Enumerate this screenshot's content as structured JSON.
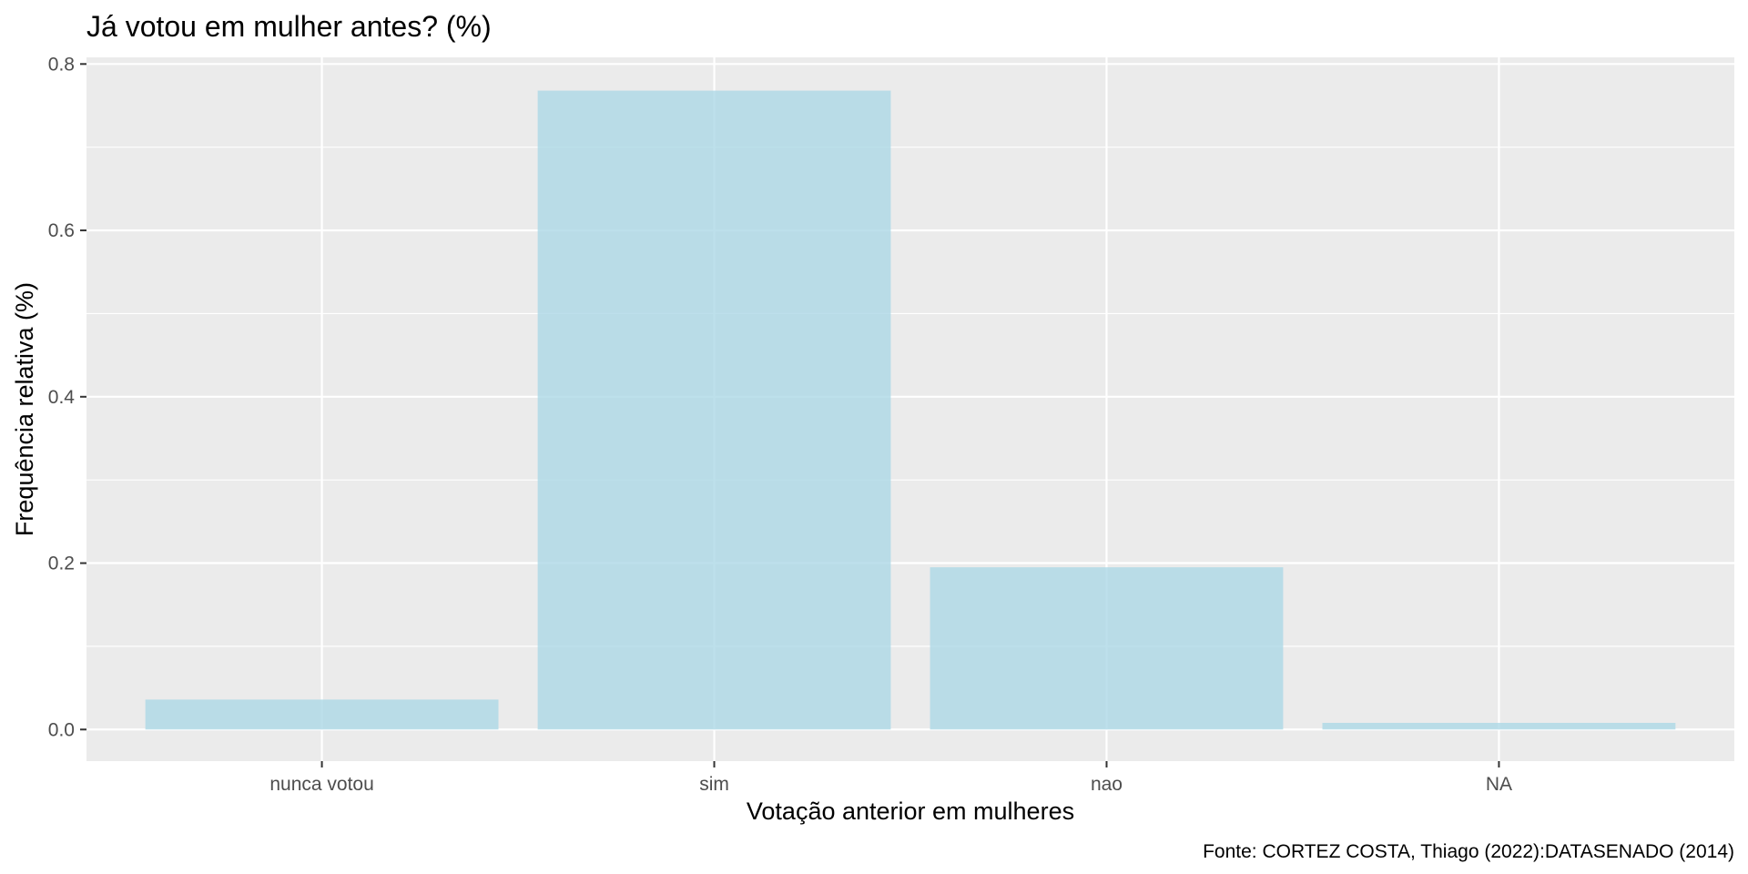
{
  "chart_data": {
    "type": "bar",
    "title": "Já votou em mulher antes? (%)",
    "xlabel": "Votação anterior em mulheres",
    "ylabel": "Frequência relativa (%)",
    "caption": "Fonte: CORTEZ COSTA, Thiago (2022):DATASENADO (2014)",
    "categories": [
      "nunca votou",
      "sim",
      "nao",
      "NA"
    ],
    "values": [
      0.036,
      0.768,
      0.195,
      0.008
    ],
    "ylim": [
      -0.038,
      0.808
    ],
    "yticks": [
      0.0,
      0.2,
      0.4,
      0.6,
      0.8
    ],
    "ytick_labels": [
      "0.0",
      "0.2",
      "0.4",
      "0.6",
      "0.8"
    ],
    "grid": true,
    "legend": "none",
    "colors": {
      "bar": "#add8e6",
      "panel_background": "#ebebeb",
      "grid": "#ffffff",
      "tick_label": "#4d4d4d",
      "tick_mark": "#333333"
    }
  }
}
